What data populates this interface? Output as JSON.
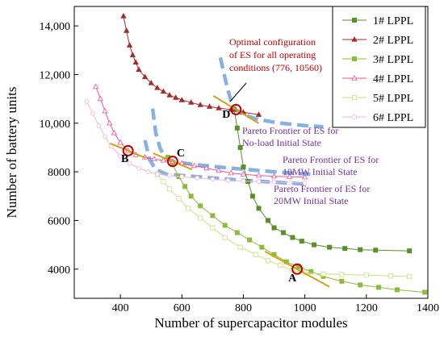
{
  "chart_data": {
    "type": "line",
    "xlabel": "Number of supercapacitor modules",
    "ylabel": "Number of battery units",
    "xlim": [
      250,
      1400
    ],
    "ylim": [
      2800,
      14800
    ],
    "xticks": [
      400,
      600,
      800,
      1000,
      1200,
      1400
    ],
    "yticks": [
      4000,
      6000,
      8000,
      10000,
      12000,
      14000
    ],
    "ytick_labels": [
      "4000",
      "6000",
      "8000",
      "10,000",
      "12,000",
      "14,000"
    ],
    "grid": false,
    "legend_position": "top-right",
    "series": [
      {
        "name": "1# LPPL",
        "color": "#5a8f29",
        "marker": "square",
        "x": [
          770,
          780,
          790,
          800,
          815,
          830,
          850,
          880,
          900,
          930,
          960,
          990,
          1030,
          1080,
          1130,
          1180,
          1230,
          1340
        ],
        "y": [
          10560,
          9800,
          9000,
          8200,
          7600,
          7000,
          6500,
          6000,
          5700,
          5500,
          5300,
          5150,
          5000,
          4900,
          4850,
          4800,
          4780,
          4750
        ]
      },
      {
        "name": "2# LPPL",
        "color": "#a52a2a",
        "marker": "triangle",
        "x": [
          410,
          420,
          430,
          440,
          450,
          460,
          480,
          500,
          520,
          540,
          560,
          580,
          600,
          630,
          660,
          690,
          720,
          760,
          800,
          850
        ],
        "y": [
          14400,
          13800,
          13200,
          12800,
          12500,
          12200,
          11900,
          11650,
          11450,
          11300,
          11150,
          11050,
          10950,
          10850,
          10750,
          10680,
          10620,
          10560,
          10450,
          10350
        ]
      },
      {
        "name": "3# LPPL",
        "color": "#8dbb3c",
        "marker": "square",
        "x": [
          555,
          570,
          590,
          610,
          630,
          660,
          700,
          740,
          780,
          820,
          860,
          900,
          940,
          980,
          1020,
          1060,
          1120,
          1180,
          1240,
          1300,
          1390
        ],
        "y": [
          8600,
          8300,
          7800,
          7400,
          7000,
          6600,
          6200,
          5800,
          5500,
          5200,
          4900,
          4600,
          4300,
          4100,
          3900,
          3700,
          3500,
          3350,
          3250,
          3150,
          3050
        ]
      },
      {
        "name": "4# LPPL",
        "color": "#e8559a",
        "marker": "triangle-open",
        "x": [
          320,
          335,
          350,
          365,
          380,
          400,
          425,
          450,
          480,
          510,
          540,
          570,
          600,
          640,
          680,
          720,
          760,
          800,
          850,
          900,
          950,
          1000
        ],
        "y": [
          11500,
          11000,
          10500,
          10000,
          9600,
          9200,
          8870,
          8700,
          8600,
          8520,
          8470,
          8420,
          8350,
          8250,
          8150,
          8050,
          7950,
          7900,
          7850,
          7820,
          7800,
          7780
        ]
      },
      {
        "name": "5# LPPL",
        "color": "#c8e07a",
        "marker": "square-open",
        "x": [
          520,
          540,
          560,
          590,
          620,
          660,
          700,
          740,
          790,
          840,
          880,
          920,
          960,
          1000,
          1060,
          1120,
          1200,
          1280,
          1340
        ],
        "y": [
          7900,
          7600,
          7300,
          6900,
          6500,
          6100,
          5700,
          5300,
          4900,
          4600,
          4350,
          4150,
          3950,
          3850,
          3800,
          3780,
          3750,
          3720,
          3700
        ]
      },
      {
        "name": "6# LPPL",
        "color": "#f0b4dc",
        "marker": "circle-open",
        "x": [
          290,
          310,
          330,
          350,
          370,
          400,
          430,
          460,
          490,
          520,
          560,
          600,
          650,
          700,
          750,
          800,
          850,
          900,
          950,
          1000
        ],
        "y": [
          10900,
          10400,
          9900,
          9450,
          9050,
          8650,
          8350,
          8150,
          8000,
          7900,
          7850,
          7800,
          7750,
          7700,
          7650,
          7620,
          7600,
          7580,
          7560,
          7540
        ]
      }
    ],
    "pareto_fronts": [
      {
        "label": "Pareto Frontier of ES for\nNo-load Initial State",
        "x": [
          725,
          745,
          760,
          775,
          800,
          850,
          920,
          1000,
          1060
        ],
        "y": [
          12700,
          11600,
          10900,
          10560,
          10350,
          10150,
          10000,
          9900,
          9850
        ]
      },
      {
        "label": "Pareto Frontier of ES for\n10MW Initial State",
        "x": [
          505,
          515,
          530,
          545,
          560,
          575,
          640,
          760,
          900,
          1020
        ],
        "y": [
          10600,
          9600,
          8950,
          8600,
          8500,
          8420,
          8300,
          8150,
          8000,
          7900
        ]
      },
      {
        "label": "Pareto Frontier of ES for\n20MW Initial State",
        "x": [
          480,
          495,
          515,
          550,
          650,
          800,
          1000
        ],
        "y": [
          9300,
          8500,
          8100,
          7900,
          7800,
          7650,
          7500
        ]
      }
    ],
    "points": [
      {
        "label": "A",
        "x": 975,
        "y": 4000
      },
      {
        "label": "B",
        "x": 425,
        "y": 8870
      },
      {
        "label": "C",
        "x": 570,
        "y": 8430
      },
      {
        "label": "D",
        "x": 776,
        "y": 10560
      }
    ],
    "optimal_annotation": "Optimal configuration\nof ES for all operating\nconditions (776, 10560)"
  }
}
